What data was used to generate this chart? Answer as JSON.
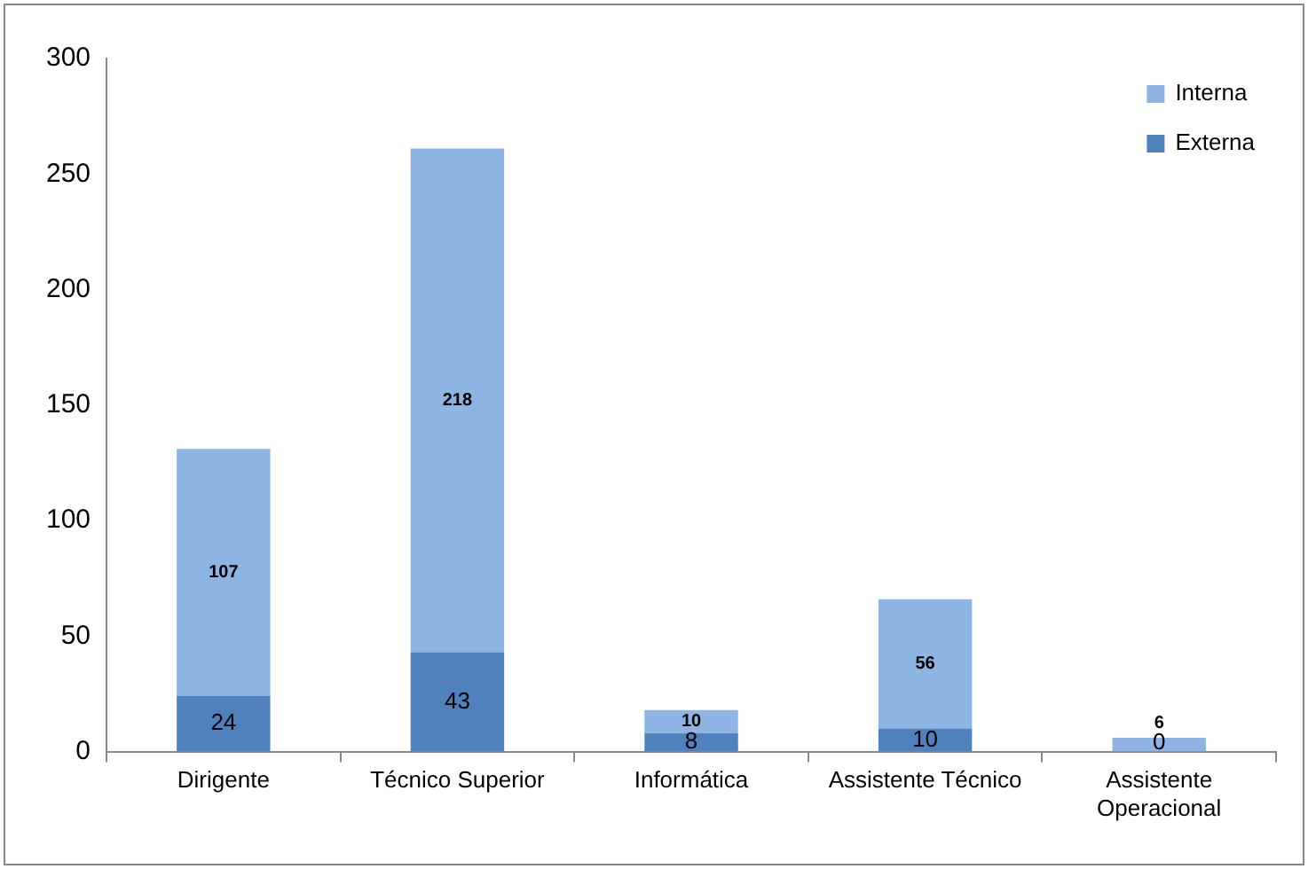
{
  "chart_data": {
    "type": "bar",
    "stacked": true,
    "categories": [
      "Dirigente",
      "Técnico Superior",
      "Informática",
      "Assistente Técnico",
      "Assistente Operacional"
    ],
    "series": [
      {
        "name": "Externa",
        "color": "#4f81bd",
        "values": [
          24,
          43,
          8,
          10,
          0
        ]
      },
      {
        "name": "Interna",
        "color": "#8eb4e3",
        "values": [
          107,
          218,
          10,
          56,
          6
        ]
      }
    ],
    "ylim": [
      0,
      300
    ],
    "yticks": [
      0,
      50,
      100,
      150,
      200,
      250,
      300
    ],
    "grid": false,
    "legend": "top right",
    "data_labels": true
  }
}
